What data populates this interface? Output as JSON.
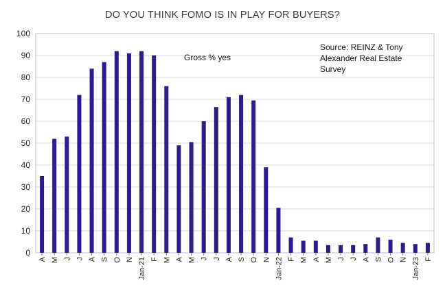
{
  "chart_data": {
    "type": "bar",
    "title": "DO YOU THINK FOMO IS IN PLAY FOR BUYERS?",
    "series_label": "Gross % yes",
    "source_lines": [
      "Source: REINZ & Tony",
      "Alexander  Real Estate",
      "Survey"
    ],
    "color": "#2e1a8f",
    "ylim": [
      0,
      100
    ],
    "yticks": [
      0,
      10,
      20,
      30,
      40,
      50,
      60,
      70,
      80,
      90,
      100
    ],
    "grid": true,
    "categories": [
      "A",
      "M",
      "J",
      "J",
      "A",
      "S",
      "O",
      "N",
      "Jan-21",
      "F",
      "M",
      "A",
      "M",
      "J",
      "J",
      "A",
      "S",
      "O",
      "N",
      "Jan-22",
      "F",
      "M",
      "A",
      "M",
      "J",
      "J",
      "A",
      "S",
      "O",
      "N",
      "Jan-23",
      "F"
    ],
    "values": [
      35,
      52,
      53,
      72,
      84,
      87,
      92,
      91,
      92,
      90,
      76,
      49,
      50.5,
      60,
      66.5,
      71,
      72,
      69.5,
      39,
      20.5,
      7,
      5.5,
      5.5,
      3.5,
      3.5,
      3.5,
      4,
      7,
      6,
      4.5,
      4,
      4.5
    ]
  }
}
